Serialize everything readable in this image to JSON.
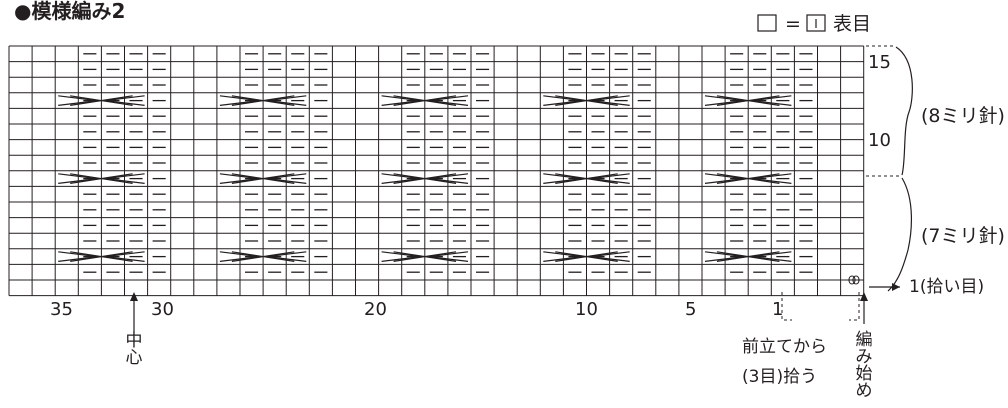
{
  "title": "●模様編み2",
  "legend": {
    "equals": "=",
    "text": "表目"
  },
  "grid": {
    "cols": 37,
    "rows": 16
  },
  "row_numbers": [
    "15",
    "10"
  ],
  "col_numbers": [
    "35",
    "30",
    "20",
    "10",
    "5",
    "1"
  ],
  "needle_labels": [
    "(8ミリ針)",
    "(7ミリ針)"
  ],
  "pickup_row_label": "1(拾い目)",
  "center_label": "中心",
  "front_pickup_label": [
    "前立てから",
    "(3目)拾う"
  ],
  "start_label": "編み始め",
  "symbol_columns": [
    3,
    4,
    5,
    6,
    10,
    11,
    12,
    13,
    17,
    18,
    19,
    20,
    24,
    25,
    26,
    27,
    31,
    32,
    33,
    34
  ],
  "cable_columns": [
    35,
    28,
    21,
    14,
    7
  ],
  "cable_rows": [
    13,
    8,
    3
  ]
}
